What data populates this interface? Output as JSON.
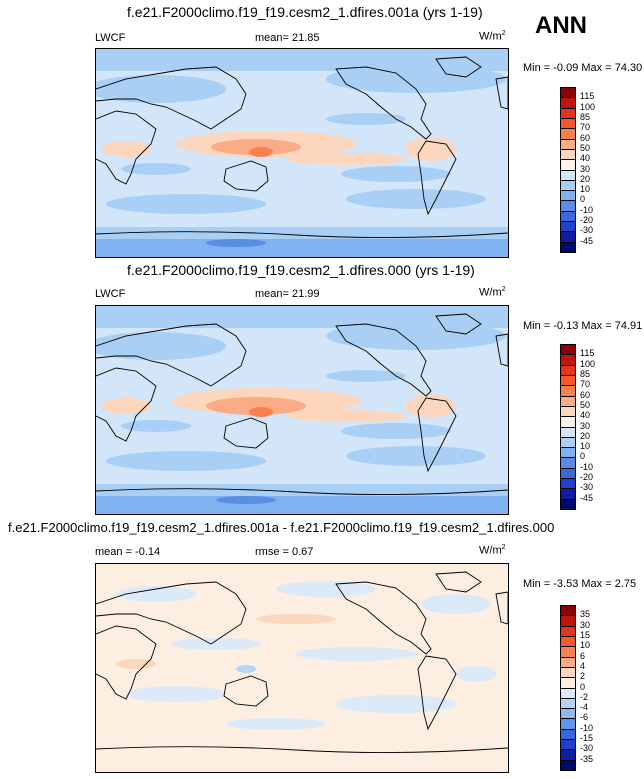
{
  "season": "ANN",
  "panels": [
    {
      "title": "f.e21.F2000climo.f19_f19.cesm2_1.dfires.001a (yrs 1-19)",
      "left_label": "LWCF",
      "center_label": "mean=  21.85",
      "units": "W/m",
      "units_sup": "2",
      "minmax": "Min = -0.09 Max = 74.30",
      "colorbar_levels": [
        "115",
        "100",
        "85",
        "70",
        "60",
        "50",
        "40",
        "30",
        "20",
        "10",
        "0",
        "-10",
        "-20",
        "-30",
        "-45"
      ],
      "colorbar_colors": [
        "#8b0000",
        "#c0150a",
        "#e2361c",
        "#f55a2e",
        "#f9814e",
        "#fbab86",
        "#fdd6be",
        "#fdf3e8",
        "#d2e5f9",
        "#aacff5",
        "#7fb2ee",
        "#5a8ee6",
        "#3a68de",
        "#1f42cc",
        "#0e1e9e",
        "#000a70"
      ]
    },
    {
      "title": "f.e21.F2000climo.f19_f19.cesm2_1.dfires.000 (yrs 1-19)",
      "left_label": "LWCF",
      "center_label": "mean=  21.99",
      "units": "W/m",
      "units_sup": "2",
      "minmax": "Min = -0.13 Max = 74.91",
      "colorbar_levels": [
        "115",
        "100",
        "85",
        "70",
        "60",
        "50",
        "40",
        "30",
        "20",
        "10",
        "0",
        "-10",
        "-20",
        "-30",
        "-45"
      ],
      "colorbar_colors": [
        "#8b0000",
        "#c0150a",
        "#e2361c",
        "#f55a2e",
        "#f9814e",
        "#fbab86",
        "#fdd6be",
        "#fdf3e8",
        "#d2e5f9",
        "#aacff5",
        "#7fb2ee",
        "#5a8ee6",
        "#3a68de",
        "#1f42cc",
        "#0e1e9e",
        "#000a70"
      ]
    },
    {
      "title": "f.e21.F2000climo.f19_f19.cesm2_1.dfires.001a - f.e21.F2000climo.f19_f19.cesm2_1.dfires.000",
      "left_label": "mean = -0.14",
      "center_label": "rmse =  0.67",
      "units": "W/m",
      "units_sup": "2",
      "minmax": "Min = -3.53 Max =  2.75",
      "colorbar_levels": [
        "35",
        "30",
        "15",
        "10",
        "6",
        "4",
        "2",
        "0",
        "-2",
        "-4",
        "-6",
        "-10",
        "-15",
        "-30",
        "-35"
      ],
      "colorbar_colors": [
        "#8b0000",
        "#c0150a",
        "#e2361c",
        "#f55a2e",
        "#f9814e",
        "#fbab86",
        "#fdd6be",
        "#fdeee2",
        "#dbe9f8",
        "#b6d5f5",
        "#8dbcef",
        "#6096e7",
        "#3a68de",
        "#1f42cc",
        "#0e1e9e",
        "#000a70"
      ]
    }
  ],
  "chart_data": [
    {
      "type": "heatmap",
      "title": "f.e21.F2000climo.f19_f19.cesm2_1.dfires.001a (yrs 1-19)",
      "variable": "LWCF",
      "mean": 21.85,
      "min": -0.09,
      "max": 74.3,
      "units": "W/m2"
    },
    {
      "type": "heatmap",
      "title": "f.e21.F2000climo.f19_f19.cesm2_1.dfires.000 (yrs 1-19)",
      "variable": "LWCF",
      "mean": 21.99,
      "min": -0.13,
      "max": 74.91,
      "units": "W/m2"
    },
    {
      "type": "heatmap",
      "title": "f.e21.F2000climo.f19_f19.cesm2_1.dfires.001a - f.e21.F2000climo.f19_f19.cesm2_1.dfires.000",
      "mean": -0.14,
      "rmse": 0.67,
      "min": -3.53,
      "max": 2.75,
      "units": "W/m2"
    }
  ]
}
